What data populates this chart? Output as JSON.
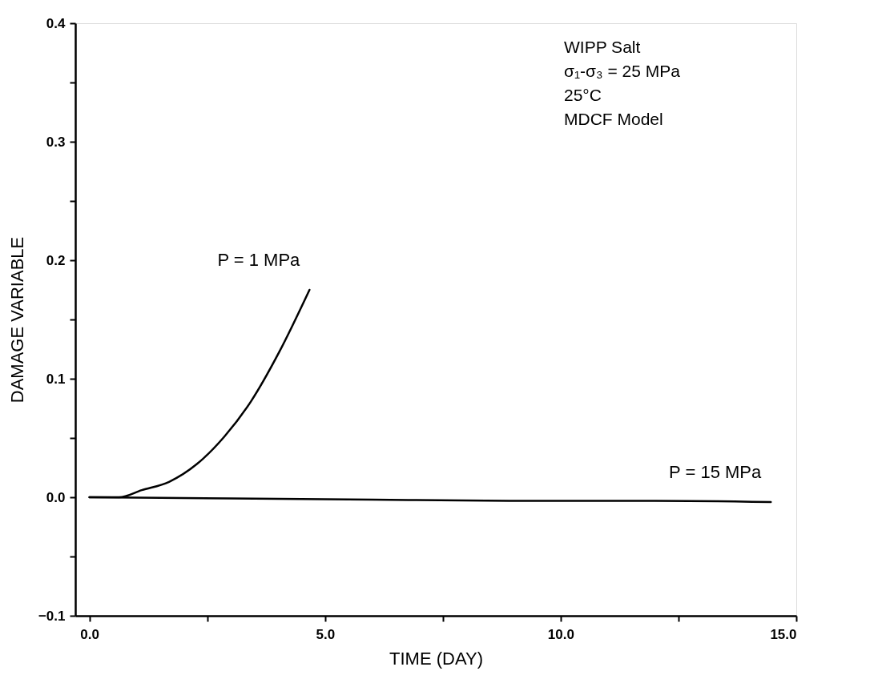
{
  "chart_data": {
    "type": "line",
    "xlabel": "TIME (DAY)",
    "ylabel": "DAMAGE VARIABLE",
    "annotations": [
      "WIPP Salt",
      "σ₁-σ₃ = 25 MPa",
      "25°C",
      "MDCF Model"
    ],
    "xlim": [
      -0.3,
      15
    ],
    "ylim": [
      -0.1,
      0.4
    ],
    "xticks": [
      {
        "value": 0,
        "label": "0.0"
      },
      {
        "value": 2.5,
        "label": null
      },
      {
        "value": 5,
        "label": "5.0"
      },
      {
        "value": 7.5,
        "label": null
      },
      {
        "value": 10,
        "label": "10.0"
      },
      {
        "value": 12.5,
        "label": null
      },
      {
        "value": 15,
        "label": "15.0"
      }
    ],
    "yticks": [
      {
        "value": -0.1,
        "label": "−0.1"
      },
      {
        "value": -0.05,
        "label": null
      },
      {
        "value": 0,
        "label": "0.0"
      },
      {
        "value": 0.05,
        "label": null
      },
      {
        "value": 0.1,
        "label": "0.1"
      },
      {
        "value": 0.15,
        "label": null
      },
      {
        "value": 0.2,
        "label": "0.2"
      },
      {
        "value": 0.25,
        "label": null
      },
      {
        "value": 0.3,
        "label": "0.3"
      },
      {
        "value": 0.35,
        "label": null
      },
      {
        "value": 0.4,
        "label": "0.4"
      }
    ],
    "grid": false,
    "legend": false,
    "marker": "none",
    "line_style": "solid",
    "series": [
      {
        "name": "P = 1 MPa",
        "color": "#000000",
        "x": [
          0,
          0.63,
          1.11,
          1.69,
          2.28,
          2.86,
          3.43,
          4.02,
          4.67
        ],
        "values": [
          0,
          0,
          0.006,
          0.013,
          0.028,
          0.051,
          0.081,
          0.122,
          0.175
        ]
      },
      {
        "name": "P = 15 MPa",
        "color": "#000000",
        "x": [
          0,
          3,
          6,
          9,
          12,
          14.46
        ],
        "values": [
          0,
          -0.001,
          -0.002,
          -0.003,
          -0.003,
          -0.004
        ]
      }
    ]
  }
}
